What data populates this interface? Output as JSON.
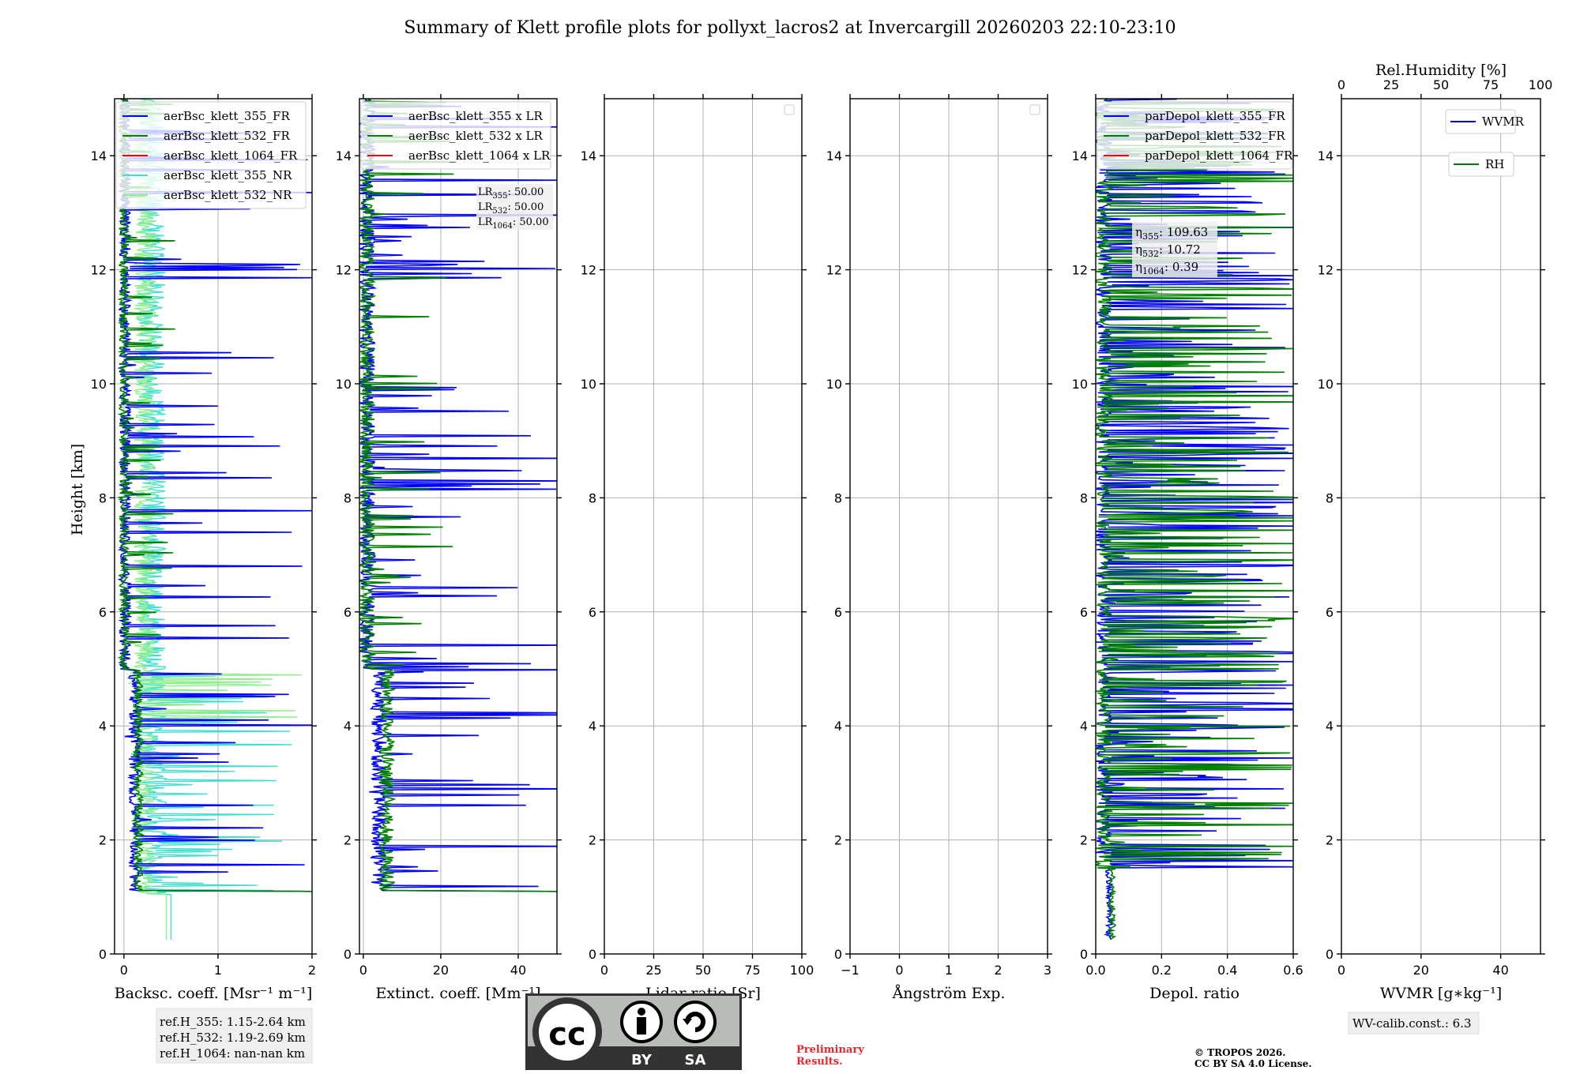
{
  "title": "Summary of Klett profile plots for pollyxt_lacros2 at Invercargill 20260203 22:10-23:10",
  "ylabel": "Height [km]",
  "chart_data": [
    {
      "id": "backscatter",
      "type": "line",
      "xlabel": "Backsc. coeff. [Msr⁻¹ m⁻¹]",
      "xlim": [
        -0.1,
        2
      ],
      "xticks": [
        0,
        1,
        2
      ],
      "ylim": [
        0,
        15
      ],
      "yticks": [
        0,
        2,
        4,
        6,
        8,
        10,
        12,
        14
      ],
      "legend": [
        "aerBsc_klett_355_FR",
        "aerBsc_klett_532_FR",
        "aerBsc_klett_1064_FR",
        "aerBsc_klett_355_NR",
        "aerBsc_klett_532_NR"
      ],
      "legend_colors": [
        "#0000ff",
        "#008000",
        "#ff0000",
        "#40e0d0",
        "#90ee90"
      ],
      "series_note": "noisy profiles; spikes up to ~2 above 1.1 km; NR profiles up to ~2 between 1 and 5 km",
      "footnote": [
        "ref.H_355: 1.15-2.64 km",
        "ref.H_532: 1.19-2.69 km",
        "ref.H_1064: nan-nan km"
      ]
    },
    {
      "id": "extinction",
      "type": "line",
      "xlabel": "Extinct. coeff. [Mm⁻¹]",
      "xlim": [
        -1,
        50
      ],
      "xticks": [
        0,
        20,
        40
      ],
      "ylim": [
        0,
        15
      ],
      "yticks": [
        0,
        2,
        4,
        6,
        8,
        10,
        12,
        14
      ],
      "legend": [
        "aerBsc_klett_355 x LR",
        "aerBsc_klett_532 x LR",
        "aerBsc_klett_1064 x LR"
      ],
      "legend_colors": [
        "#0000ff",
        "#008000",
        "#ff0000"
      ],
      "lr_labels": [
        {
          "base": "LR",
          "sub": "355",
          "value": ": 50.00"
        },
        {
          "base": "LR",
          "sub": "532",
          "value": ": 50.00"
        },
        {
          "base": "LR",
          "sub": "1064",
          "value": ": 50.00"
        }
      ]
    },
    {
      "id": "lidar-ratio",
      "type": "line",
      "xlabel": "Lidar ratio [Sr]",
      "xlim": [
        0,
        100
      ],
      "xticks": [
        0,
        25,
        50,
        75,
        100
      ],
      "ylim": [
        0,
        15
      ],
      "yticks": [
        0,
        2,
        4,
        6,
        8,
        10,
        12,
        14
      ],
      "series": []
    },
    {
      "id": "angstrom",
      "type": "line",
      "xlabel": "Ångström Exp.",
      "xlim": [
        -1,
        3
      ],
      "xticks": [
        -1,
        0,
        1,
        2,
        3
      ],
      "xtick_labels": [
        "−1",
        "0",
        "1",
        "2",
        "3"
      ],
      "ylim": [
        0,
        15
      ],
      "yticks": [
        0,
        2,
        4,
        6,
        8,
        10,
        12,
        14
      ],
      "series": []
    },
    {
      "id": "depol",
      "type": "line",
      "xlabel": "Depol. ratio",
      "xlim": [
        0,
        0.6
      ],
      "xticks": [
        0,
        0.2,
        0.4,
        0.6
      ],
      "xtick_labels": [
        "0.0",
        "0.2",
        "0.4",
        "0.6"
      ],
      "ylim": [
        0,
        15
      ],
      "yticks": [
        0,
        2,
        4,
        6,
        8,
        10,
        12,
        14
      ],
      "legend": [
        "parDepol_klett_355_FR",
        "parDepol_klett_532_FR",
        "parDepol_klett_1064_FR"
      ],
      "legend_colors": [
        "#0000ff",
        "#008000",
        "#ff0000"
      ],
      "eta_labels": [
        {
          "base": "η",
          "sub": "355",
          "value": ": 109.63"
        },
        {
          "base": "η",
          "sub": "532",
          "value": ": 10.72"
        },
        {
          "base": "η",
          "sub": "1064",
          "value": ": 0.39"
        }
      ]
    },
    {
      "id": "wvmr",
      "type": "line",
      "xlabel": "WVMR [g∗kg⁻¹]",
      "xlim": [
        0,
        50
      ],
      "xticks": [
        0,
        20,
        40
      ],
      "top_xlabel": "Rel.Humidity [%]",
      "top_xlim": [
        0,
        100
      ],
      "top_xticks": [
        0,
        25,
        50,
        75,
        100
      ],
      "ylim": [
        0,
        15
      ],
      "yticks": [
        0,
        2,
        4,
        6,
        8,
        10,
        12,
        14
      ],
      "legend": [
        "WVMR",
        "RH"
      ],
      "legend_colors": [
        "#0000ff",
        "#008000"
      ],
      "footnote": [
        "WV-calib.const.: 6.3"
      ]
    }
  ],
  "license_badge": {
    "cc": "cc",
    "by": "BY",
    "sa": "SA"
  },
  "preliminary": [
    "Preliminary",
    "Results."
  ],
  "copyright": [
    "© TROPOS 2026.",
    "CC BY SA 4.0 License."
  ],
  "colors": {
    "blue": "#0000ff",
    "green": "#008000",
    "red": "#ff0000",
    "cyan": "#40e0d0",
    "lightgreen": "#90ee90",
    "grid": "#b0b0b0"
  }
}
